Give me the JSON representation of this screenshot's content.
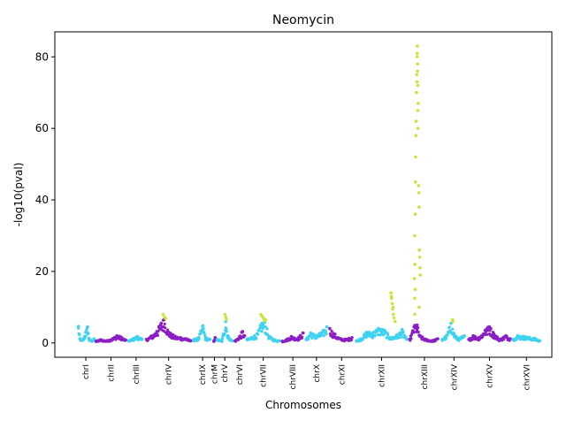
{
  "chart_data": {
    "type": "scatter",
    "title": "Neomycin",
    "xlabel": "Chromosomes",
    "ylabel": "-log10(pval)",
    "ylim": [
      -4,
      87
    ],
    "yticks": [
      0,
      20,
      40,
      60,
      80
    ],
    "grid": false,
    "legend": "none",
    "colors": {
      "odd": "#8B1EC4",
      "even": "#3FD3F2",
      "significant": "#C2E83A",
      "frame": "#000000"
    },
    "chromosomes": [
      {
        "name": "chrI",
        "start": 0,
        "end": 6,
        "color": "#3FD3F2",
        "points": [
          [
            0.5,
            4.6
          ],
          [
            1,
            1.2
          ],
          [
            2,
            0.8
          ],
          [
            3,
            3.0
          ],
          [
            3.6,
            4.5
          ],
          [
            4.2,
            1.0
          ],
          [
            5,
            0.6
          ],
          [
            5.8,
            1.2
          ]
        ]
      },
      {
        "name": "chrII",
        "start": 6,
        "end": 17,
        "color": "#8B1EC4",
        "points": [
          [
            6.5,
            0.5
          ],
          [
            8,
            0.9
          ],
          [
            10,
            0.6
          ],
          [
            12,
            1.2
          ],
          [
            13.5,
            2.0
          ],
          [
            15,
            1.6
          ],
          [
            16.5,
            0.8
          ]
        ]
      },
      {
        "name": "chrIII",
        "start": 17,
        "end": 23,
        "color": "#3FD3F2",
        "points": [
          [
            17.5,
            0.6
          ],
          [
            19,
            1.2
          ],
          [
            20.5,
            1.8
          ],
          [
            22,
            1.0
          ]
        ]
      },
      {
        "name": "chrIV",
        "start": 23,
        "end": 39,
        "color": "#8B1EC4",
        "points": [
          [
            23.5,
            1.0
          ],
          [
            25,
            1.8
          ],
          [
            27,
            3.2
          ],
          [
            28.5,
            5.5
          ],
          [
            29.5,
            6.5
          ],
          [
            31,
            3.0
          ],
          [
            33,
            1.8
          ],
          [
            35,
            1.5
          ],
          [
            37,
            1.2
          ],
          [
            38.5,
            0.6
          ]
        ]
      },
      {
        "name": "chrIX",
        "start": 39,
        "end": 46,
        "color": "#3FD3F2",
        "points": [
          [
            39.5,
            1.0
          ],
          [
            41,
            1.2
          ],
          [
            42.6,
            4.8
          ],
          [
            43.5,
            1.5
          ],
          [
            45,
            1.0
          ]
        ]
      },
      {
        "name": "chrM",
        "start": 46,
        "end": 47,
        "color": "#8B1EC4",
        "points": [
          [
            46.3,
            0.5
          ],
          [
            46.7,
            1.5
          ]
        ]
      },
      {
        "name": "chrV",
        "start": 47,
        "end": 53,
        "color": "#3FD3F2",
        "points": [
          [
            47.5,
            1.0
          ],
          [
            49,
            0.6
          ],
          [
            50.3,
            6.0
          ],
          [
            51,
            2.0
          ],
          [
            52.5,
            0.6
          ]
        ]
      },
      {
        "name": "chrVI",
        "start": 53,
        "end": 57,
        "color": "#8B1EC4",
        "points": [
          [
            53.5,
            0.6
          ],
          [
            55,
            1.8
          ],
          [
            56,
            3.2
          ],
          [
            56.7,
            2.0
          ]
        ]
      },
      {
        "name": "chrVII",
        "start": 57,
        "end": 69,
        "color": "#3FD3F2",
        "points": [
          [
            57.5,
            1.0
          ],
          [
            59,
            1.5
          ],
          [
            61,
            2.5
          ],
          [
            62.5,
            5.5
          ],
          [
            63.5,
            5.8
          ],
          [
            65,
            1.8
          ],
          [
            67,
            0.8
          ],
          [
            68.5,
            0.6
          ]
        ]
      },
      {
        "name": "chrVIII",
        "start": 69,
        "end": 77,
        "color": "#8B1EC4",
        "points": [
          [
            69.5,
            0.5
          ],
          [
            71,
            1.0
          ],
          [
            72.5,
            1.8
          ],
          [
            74.5,
            1.2
          ],
          [
            76.5,
            2.8
          ]
        ]
      },
      {
        "name": "chrX",
        "start": 77,
        "end": 85,
        "color": "#3FD3F2",
        "points": [
          [
            77.5,
            1.0
          ],
          [
            79,
            2.8
          ],
          [
            81,
            2.0
          ],
          [
            83,
            3.0
          ],
          [
            84.5,
            4.5
          ]
        ]
      },
      {
        "name": "chrXI",
        "start": 85,
        "end": 94,
        "color": "#8B1EC4",
        "points": [
          [
            85.5,
            4.0
          ],
          [
            87,
            2.5
          ],
          [
            89,
            1.2
          ],
          [
            91,
            1.0
          ],
          [
            93,
            1.5
          ]
        ]
      },
      {
        "name": "chrXII",
        "start": 94,
        "end": 112,
        "color": "#3FD3F2",
        "points": [
          [
            94.5,
            0.6
          ],
          [
            96,
            1.2
          ],
          [
            98,
            3.0
          ],
          [
            100,
            2.8
          ],
          [
            102,
            4.0
          ],
          [
            104,
            3.5
          ],
          [
            106,
            1.5
          ],
          [
            108,
            2.0
          ],
          [
            110,
            3.5
          ],
          [
            111.5,
            1.0
          ]
        ]
      },
      {
        "name": "chrXIII",
        "start": 112,
        "end": 123,
        "color": "#8B1EC4",
        "points": [
          [
            112.5,
            1.0
          ],
          [
            114,
            4.5
          ],
          [
            115,
            5.0
          ],
          [
            116,
            2.0
          ],
          [
            118,
            1.0
          ],
          [
            120,
            0.6
          ],
          [
            122,
            1.2
          ]
        ]
      },
      {
        "name": "chrXIV",
        "start": 123,
        "end": 132,
        "color": "#3FD3F2",
        "points": [
          [
            123.5,
            1.0
          ],
          [
            125,
            2.0
          ],
          [
            126.5,
            5.5
          ],
          [
            127.5,
            2.5
          ],
          [
            129,
            1.2
          ],
          [
            131,
            2.0
          ]
        ]
      },
      {
        "name": "chrXV",
        "start": 132,
        "end": 147,
        "color": "#8B1EC4",
        "points": [
          [
            132.5,
            1.0
          ],
          [
            134,
            2.0
          ],
          [
            136,
            1.5
          ],
          [
            138,
            3.5
          ],
          [
            139.5,
            4.5
          ],
          [
            141,
            2.5
          ],
          [
            143,
            1.0
          ],
          [
            145,
            2.0
          ],
          [
            146.5,
            1.2
          ]
        ]
      },
      {
        "name": "chrXVI",
        "start": 147,
        "end": 157,
        "color": "#3FD3F2",
        "points": [
          [
            147.5,
            1.0
          ],
          [
            149,
            2.0
          ],
          [
            151,
            1.8
          ],
          [
            153,
            1.5
          ],
          [
            155,
            1.2
          ],
          [
            156.5,
            0.6
          ]
        ]
      }
    ],
    "significant_points": [
      [
        29.2,
        8.0
      ],
      [
        29.6,
        7.2
      ],
      [
        30.0,
        6.8
      ],
      [
        50.1,
        8.0
      ],
      [
        50.3,
        7.2
      ],
      [
        50.5,
        6.5
      ],
      [
        62.2,
        8.0
      ],
      [
        62.6,
        7.5
      ],
      [
        63.0,
        7.0
      ],
      [
        63.4,
        6.2
      ],
      [
        63.8,
        6.5
      ],
      [
        106.2,
        14.0
      ],
      [
        106.4,
        12.5
      ],
      [
        106.6,
        11.0
      ],
      [
        106.8,
        9.5
      ],
      [
        107.0,
        8.0
      ],
      [
        107.2,
        7.0
      ],
      [
        107.6,
        6.0
      ],
      [
        106.3,
        13.0
      ],
      [
        106.9,
        10.0
      ],
      [
        114.1,
        18.0
      ],
      [
        114.3,
        22.0
      ],
      [
        114.5,
        52.0
      ],
      [
        114.6,
        58.0
      ],
      [
        114.7,
        62.0
      ],
      [
        114.8,
        70.0
      ],
      [
        114.9,
        75.0
      ],
      [
        115.0,
        80.0
      ],
      [
        115.1,
        83.0
      ],
      [
        115.2,
        78.0
      ],
      [
        115.3,
        72.0
      ],
      [
        115.4,
        67.0
      ],
      [
        115.5,
        44.0
      ],
      [
        115.6,
        42.0
      ],
      [
        115.7,
        38.0
      ],
      [
        115.8,
        26.0
      ],
      [
        115.9,
        24.0
      ],
      [
        116.0,
        21.0
      ],
      [
        114.4,
        15.0
      ],
      [
        114.2,
        30.0
      ],
      [
        114.35,
        36.0
      ],
      [
        114.45,
        45.0
      ],
      [
        115.05,
        81.0
      ],
      [
        115.15,
        76.0
      ],
      [
        114.95,
        73.0
      ],
      [
        115.25,
        65.0
      ],
      [
        115.35,
        60.0
      ],
      [
        116.1,
        19.0
      ],
      [
        114.15,
        12.5
      ],
      [
        115.7,
        10.0
      ],
      [
        114.25,
        8.0
      ],
      [
        127.0,
        6.5
      ],
      [
        127.1,
        6.0
      ]
    ]
  }
}
